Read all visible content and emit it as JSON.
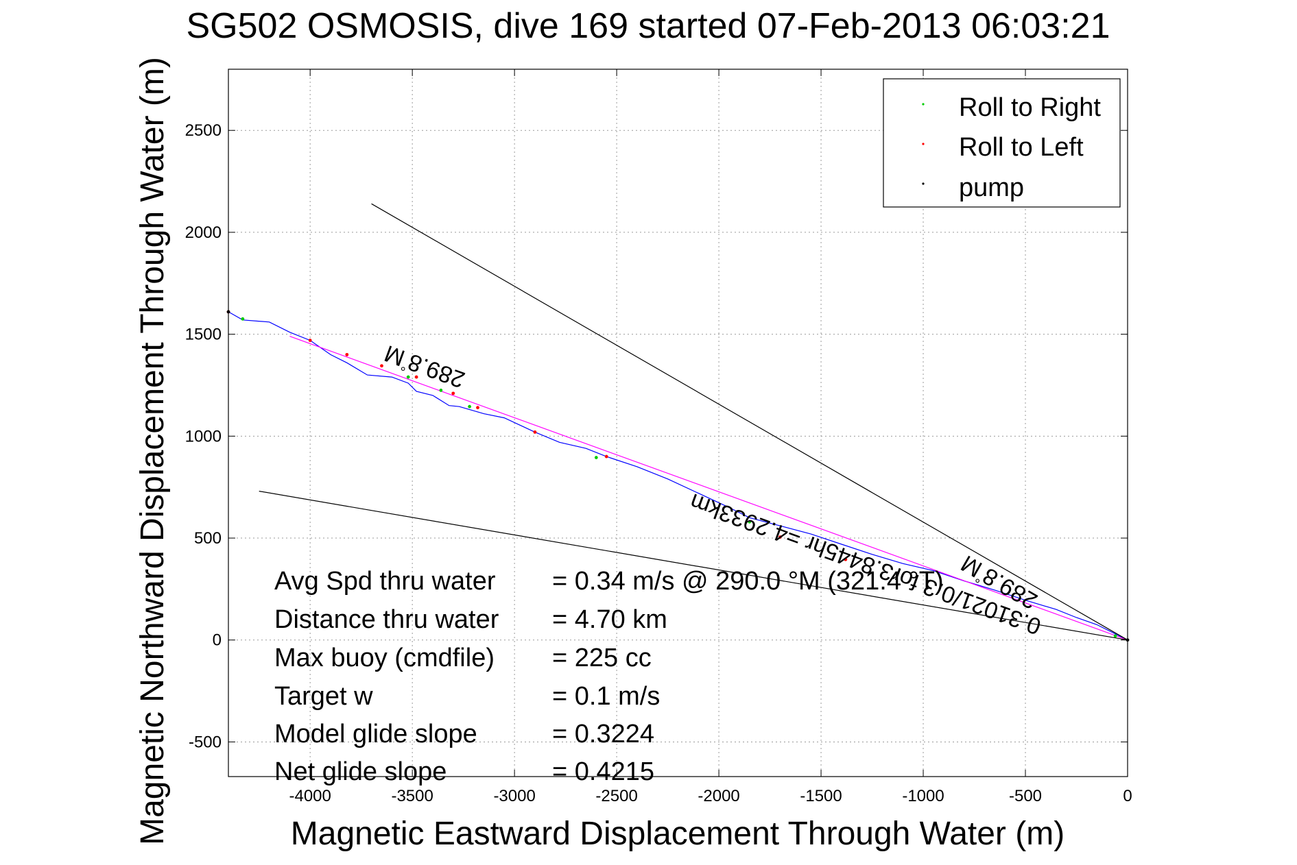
{
  "chart_data": {
    "type": "line",
    "title": "SG502 OSMOSIS, dive 169 started 07-Feb-2013 06:03:21",
    "xlabel": "Magnetic Eastward Displacement Through Water (m)",
    "ylabel": "Magnetic Northward Displacement Through Water (m)",
    "xlim": [
      -4400,
      0
    ],
    "ylim": [
      -670,
      2800
    ],
    "xticks": [
      -4000,
      -3500,
      -3000,
      -2500,
      -2000,
      -1500,
      -1000,
      -500,
      0
    ],
    "yticks": [
      -500,
      0,
      500,
      1000,
      1500,
      2000,
      2500
    ],
    "grid": true,
    "legend_position": "top-right",
    "legend": [
      {
        "label": "Roll to Right",
        "color": "#00cc00"
      },
      {
        "label": "Roll to Left",
        "color": "#ff0000"
      },
      {
        "label": "pump",
        "color": "#000000"
      }
    ],
    "colors": {
      "track": "#0000ff",
      "heading_line": "#ff00ff",
      "guide": "#000000"
    },
    "series": [
      {
        "color": "#0000ff",
        "x": [
          0,
          -60,
          -150,
          -250,
          -350,
          -500,
          -650,
          -800,
          -950,
          -1100,
          -1250,
          -1400,
          -1550,
          -1700,
          -1850,
          -1950,
          -2100,
          -2250,
          -2400,
          -2550,
          -2650,
          -2780,
          -2900,
          -3050,
          -3150,
          -3270,
          -3320,
          -3400,
          -3480,
          -3520,
          -3600,
          -3720,
          -3820,
          -3900,
          -4000,
          -4100,
          -4200,
          -4330,
          -4400
        ],
        "y": [
          0,
          30,
          75,
          110,
          150,
          195,
          245,
          290,
          340,
          375,
          420,
          470,
          520,
          560,
          600,
          650,
          720,
          790,
          850,
          900,
          940,
          970,
          1020,
          1090,
          1110,
          1145,
          1150,
          1200,
          1220,
          1260,
          1290,
          1300,
          1360,
          1400,
          1470,
          1510,
          1560,
          1570,
          1610
        ]
      },
      {
        "color": "#ff00ff",
        "x": [
          0,
          -4100
        ],
        "y": [
          0,
          1490
        ]
      },
      {
        "color": "#000000",
        "x": [
          0,
          -3700
        ],
        "y": [
          0,
          2140
        ]
      },
      {
        "color": "#000000",
        "x": [
          0,
          -4250
        ],
        "y": [
          0,
          730
        ]
      }
    ],
    "markers": {
      "roll_right": {
        "color": "#00cc00",
        "x": [
          -60,
          -1850,
          -2600,
          -3220,
          -3360,
          -3520,
          -4330
        ],
        "y": [
          20,
          580,
          895,
          1145,
          1225,
          1290,
          1575
        ]
      },
      "roll_left": {
        "color": "#ff0000",
        "x": [
          -1380,
          -1700,
          -2550,
          -2900,
          -3180,
          -3300,
          -3480,
          -3650,
          -3820,
          -4000,
          -4400
        ],
        "y": [
          395,
          505,
          900,
          1020,
          1140,
          1210,
          1290,
          1345,
          1400,
          1470,
          1610
        ]
      },
      "pump": {
        "color": "#000000",
        "x": [
          0,
          -4400
        ],
        "y": [
          0,
          1610
        ]
      }
    },
    "annotations": [
      "289.8°M",
      "289.8°M",
      "0.31021/0.3 for3.8445hr =4.2933km"
    ],
    "annotation_parts": {
      "deg_symbol": "°",
      "heading_value": "289.8",
      "heading_unit": "M"
    }
  },
  "stats": [
    {
      "label": "Avg Spd thru water",
      "value": "=  0.34 m/s @ 290.0 °M (321.4 °T)"
    },
    {
      "label": "Distance thru water",
      "value": "=  4.70 km"
    },
    {
      "label": "Max buoy (cmdfile)",
      "value": "= 225 cc"
    },
    {
      "label": "Target w",
      "value": "= 0.1 m/s"
    },
    {
      "label": "Model glide slope",
      "value": "= 0.3224"
    },
    {
      "label": "Net glide slope",
      "value": "= 0.4215"
    }
  ]
}
